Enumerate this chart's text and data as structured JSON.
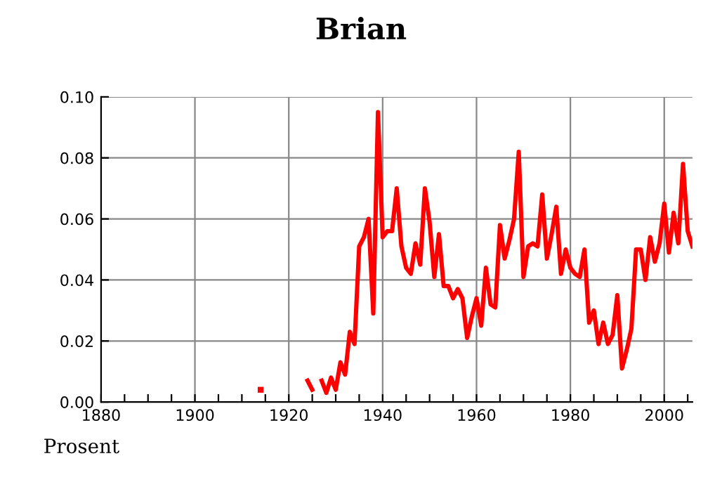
{
  "chart_data": {
    "type": "line",
    "title": "Brian",
    "ylabel": "Prosent",
    "x": [
      1914,
      1915,
      1916,
      1917,
      1918,
      1919,
      1920,
      1921,
      1922,
      1923,
      1924,
      1925,
      1926,
      1927,
      1928,
      1929,
      1930,
      1931,
      1932,
      1933,
      1934,
      1935,
      1936,
      1937,
      1938,
      1939,
      1940,
      1941,
      1942,
      1943,
      1944,
      1945,
      1946,
      1947,
      1948,
      1949,
      1950,
      1951,
      1952,
      1953,
      1954,
      1955,
      1956,
      1957,
      1958,
      1959,
      1960,
      1961,
      1962,
      1963,
      1964,
      1965,
      1966,
      1967,
      1968,
      1969,
      1970,
      1971,
      1972,
      1973,
      1974,
      1975,
      1976,
      1977,
      1978,
      1979,
      1980,
      1981,
      1982,
      1983,
      1984,
      1985,
      1986,
      1987,
      1988,
      1989,
      1990,
      1991,
      1992,
      1993,
      1994,
      1995,
      1996,
      1997,
      1998,
      1999,
      2000,
      2001,
      2002,
      2003,
      2004,
      2005,
      2006
    ],
    "series": [
      {
        "color": "#ff0000",
        "values": [
          0.004,
          null,
          null,
          null,
          null,
          null,
          null,
          null,
          null,
          null,
          0.007,
          0.004,
          null,
          0.007,
          0.003,
          0.008,
          0.004,
          0.013,
          0.009,
          0.023,
          0.019,
          0.051,
          0.054,
          0.06,
          0.029,
          0.095,
          0.054,
          0.056,
          0.056,
          0.07,
          0.051,
          0.044,
          0.042,
          0.052,
          0.045,
          0.07,
          0.059,
          0.041,
          0.055,
          0.038,
          0.038,
          0.034,
          0.037,
          0.034,
          0.021,
          0.028,
          0.034,
          0.025,
          0.044,
          0.032,
          0.031,
          0.058,
          0.047,
          0.053,
          0.06,
          0.082,
          0.041,
          0.051,
          0.052,
          0.051,
          0.068,
          0.047,
          0.055,
          0.064,
          0.042,
          0.05,
          0.044,
          0.042,
          0.041,
          0.05,
          0.026,
          0.03,
          0.019,
          0.026,
          0.019,
          0.022,
          0.035,
          0.011,
          0.017,
          0.024,
          0.05,
          0.05,
          0.04,
          0.054,
          0.046,
          0.052,
          0.065,
          0.049,
          0.062,
          0.052,
          0.078,
          0.056,
          0.051
        ]
      }
    ],
    "xlim": [
      1880,
      2006
    ],
    "xticks": [
      1880,
      {
        "value": 1885,
        "label": null
      },
      {
        "value": 1890,
        "label": null
      },
      {
        "value": 1895,
        "label": null
      },
      1900,
      {
        "value": 1905,
        "label": null
      },
      {
        "value": 1910,
        "label": null
      },
      {
        "value": 1915,
        "label": null
      },
      1920,
      {
        "value": 1925,
        "label": null
      },
      {
        "value": 1930,
        "label": null
      },
      {
        "value": 1935,
        "label": null
      },
      1940,
      {
        "value": 1945,
        "label": null
      },
      {
        "value": 1950,
        "label": null
      },
      {
        "value": 1955,
        "label": null
      },
      1960,
      {
        "value": 1965,
        "label": null
      },
      {
        "value": 1970,
        "label": null
      },
      {
        "value": 1975,
        "label": null
      },
      1980,
      {
        "value": 1985,
        "label": null
      },
      {
        "value": 1990,
        "label": null
      },
      {
        "value": 1995,
        "label": null
      },
      2000,
      {
        "value": 2005,
        "label": null
      }
    ],
    "ylim": [
      0,
      0.1
    ],
    "yticks": [
      {
        "value": 0,
        "label": "0.00"
      },
      {
        "value": 0.02,
        "label": "0.02"
      },
      {
        "value": 0.04,
        "label": "0.04"
      },
      {
        "value": 0.06,
        "label": "0.06"
      },
      {
        "value": 0.08,
        "label": "0.08"
      },
      {
        "value": 0.1,
        "label": "0.10"
      }
    ],
    "grid": true,
    "legend": false,
    "marker": "none",
    "line_style": "solid"
  }
}
